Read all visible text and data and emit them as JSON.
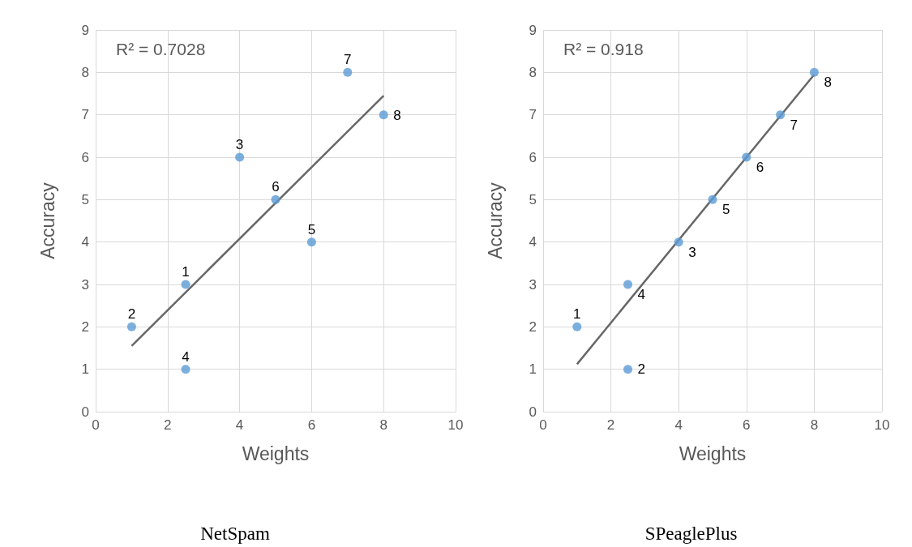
{
  "chart_data": [
    {
      "type": "scatter",
      "title": "NetSpam",
      "xlabel": "Weights",
      "ylabel": "Accuracy",
      "annotations": [
        "R² = 0.7028",
        {
          "text": "1",
          "x": 2.5,
          "y": 3
        },
        {
          "text": "2",
          "x": 1,
          "y": 2
        },
        {
          "text": "3",
          "x": 4,
          "y": 6
        },
        {
          "text": "4",
          "x": 2.5,
          "y": 1
        },
        {
          "text": "5",
          "x": 6,
          "y": 4
        },
        {
          "text": "6",
          "x": 5,
          "y": 5
        },
        {
          "text": "7",
          "x": 7,
          "y": 8
        },
        {
          "text": "8",
          "x": 8,
          "y": 7
        }
      ],
      "xlim": [
        0,
        10
      ],
      "xticks": [
        0,
        2,
        4,
        6,
        8,
        10
      ],
      "ylim": [
        0,
        9
      ],
      "yticks": [
        0,
        1,
        2,
        3,
        4,
        5,
        6,
        7,
        8,
        9
      ],
      "grid": true,
      "series": [
        {
          "marker": "circle",
          "color": "#5b9bd5",
          "x": [
            2.5,
            1,
            4,
            2.5,
            6,
            5,
            7,
            8
          ],
          "values": [
            3,
            2,
            6,
            1,
            4,
            5,
            8,
            7
          ]
        },
        {
          "type": "line",
          "marker": "none",
          "color": "#676767",
          "x": [
            1,
            8
          ],
          "values": [
            1.55,
            7.45
          ]
        }
      ]
    },
    {
      "type": "scatter",
      "title": "SPeaglePlus",
      "xlabel": "Weights",
      "ylabel": "Accuracy",
      "annotations": [
        "R² = 0.918",
        {
          "text": "1",
          "x": 1,
          "y": 2
        },
        {
          "text": "2",
          "x": 2.5,
          "y": 1
        },
        {
          "text": "3",
          "x": 4,
          "y": 4
        },
        {
          "text": "4",
          "x": 2.5,
          "y": 3
        },
        {
          "text": "5",
          "x": 5,
          "y": 5
        },
        {
          "text": "6",
          "x": 6,
          "y": 6
        },
        {
          "text": "7",
          "x": 7,
          "y": 7
        },
        {
          "text": "8",
          "x": 8,
          "y": 8
        }
      ],
      "xlim": [
        0,
        10
      ],
      "xticks": [
        0,
        2,
        4,
        6,
        8,
        10
      ],
      "ylim": [
        0,
        9
      ],
      "yticks": [
        0,
        1,
        2,
        3,
        4,
        5,
        6,
        7,
        8,
        9
      ],
      "grid": true,
      "series": [
        {
          "marker": "circle",
          "color": "#5b9bd5",
          "x": [
            1,
            2.5,
            4,
            2.5,
            5,
            6,
            7,
            8
          ],
          "values": [
            2,
            1,
            4,
            3,
            5,
            6,
            7,
            8
          ]
        },
        {
          "type": "line",
          "marker": "none",
          "color": "#676767",
          "x": [
            1,
            8
          ],
          "values": [
            1.12,
            7.95
          ]
        }
      ]
    }
  ]
}
